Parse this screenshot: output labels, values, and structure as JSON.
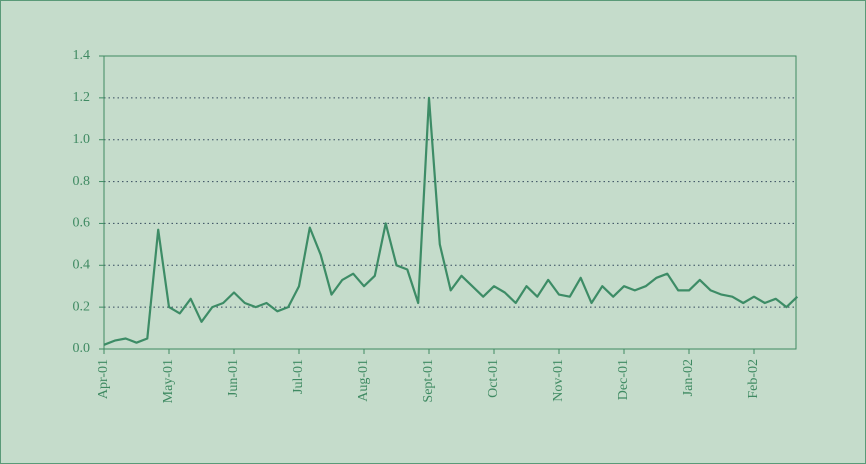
{
  "chart_data": {
    "type": "line",
    "categories": [
      "Apr-01",
      null,
      null,
      null,
      null,
      null,
      "May-01",
      null,
      null,
      null,
      null,
      null,
      "Jun-01",
      null,
      null,
      null,
      null,
      null,
      "Jul-01",
      null,
      null,
      null,
      null,
      null,
      "Aug-01",
      null,
      null,
      null,
      null,
      null,
      "Sept-01",
      null,
      null,
      null,
      null,
      null,
      "Oct-01",
      null,
      null,
      null,
      null,
      null,
      "Nov-01",
      null,
      null,
      null,
      null,
      null,
      "Dec-01",
      null,
      null,
      null,
      null,
      null,
      "Jan-02",
      null,
      null,
      null,
      null,
      null,
      "Feb-02",
      null,
      null,
      null,
      null
    ],
    "values": [
      0.02,
      0.04,
      0.05,
      0.03,
      0.05,
      0.57,
      0.2,
      0.17,
      0.24,
      0.13,
      0.2,
      0.22,
      0.27,
      0.22,
      0.2,
      0.22,
      0.18,
      0.2,
      0.3,
      0.58,
      0.45,
      0.26,
      0.33,
      0.36,
      0.3,
      0.35,
      0.6,
      0.4,
      0.38,
      0.22,
      1.2,
      0.5,
      0.28,
      0.35,
      0.3,
      0.25,
      0.3,
      0.27,
      0.22,
      0.3,
      0.25,
      0.33,
      0.26,
      0.25,
      0.34,
      0.22,
      0.3,
      0.25,
      0.3,
      0.28,
      0.3,
      0.34,
      0.36,
      0.28,
      0.28,
      0.33,
      0.28,
      0.26,
      0.25,
      0.22,
      0.25,
      0.22,
      0.24,
      0.2,
      0.25
    ],
    "color": "#3d8c66",
    "ylim": [
      0,
      1.4
    ],
    "yticks": [
      {
        "value": 0,
        "label": "0.0"
      },
      0.2,
      0.4,
      0.6,
      0.8,
      {
        "value": 1,
        "label": "1.0"
      },
      1.2,
      1.4
    ],
    "grid": true
  }
}
